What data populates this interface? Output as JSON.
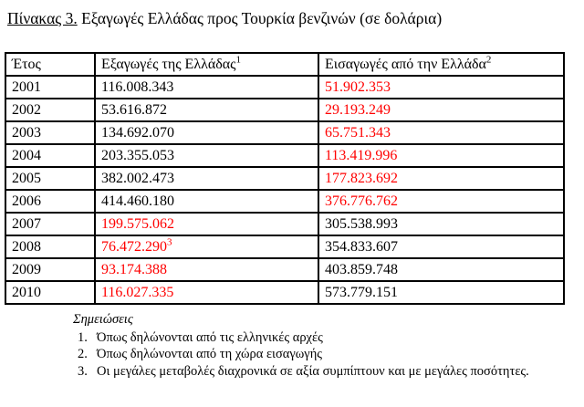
{
  "title": {
    "underlined": "Πίνακας 3.",
    "rest": " Εξαγωγές Ελλάδας προς Τουρκία βενζινών (σε δολάρια)"
  },
  "table": {
    "headers": [
      {
        "text": "Έτος",
        "sup": ""
      },
      {
        "text": "Εξαγωγές της Ελλάδας",
        "sup": "1"
      },
      {
        "text": "Εισαγωγές από την Ελλάδα",
        "sup": "2"
      }
    ],
    "rows": [
      {
        "year": "2001",
        "exports": {
          "value": "116.008.343",
          "sup": "",
          "color": "black",
          "bold": false
        },
        "imports": {
          "value": "51.902.353",
          "sup": "",
          "color": "red",
          "bold": false
        }
      },
      {
        "year": "2002",
        "exports": {
          "value": "53.616.872",
          "sup": "",
          "color": "black",
          "bold": false
        },
        "imports": {
          "value": "29.193.249",
          "sup": "",
          "color": "red",
          "bold": false
        }
      },
      {
        "year": "2003",
        "exports": {
          "value": "134.692.070",
          "sup": "",
          "color": "black",
          "bold": false
        },
        "imports": {
          "value": "65.751.343",
          "sup": "",
          "color": "red",
          "bold": false
        }
      },
      {
        "year": "2004",
        "exports": {
          "value": "203.355.053",
          "sup": "",
          "color": "black",
          "bold": false
        },
        "imports": {
          "value": "113.419.996",
          "sup": "",
          "color": "red",
          "bold": false
        }
      },
      {
        "year": "2005",
        "exports": {
          "value": "382.002.473",
          "sup": "",
          "color": "black",
          "bold": false
        },
        "imports": {
          "value": "177.823.692",
          "sup": "",
          "color": "red",
          "bold": false
        }
      },
      {
        "year": "2006",
        "exports": {
          "value": "414.460.180",
          "sup": "",
          "color": "black",
          "bold": false
        },
        "imports": {
          "value": "376.776.762",
          "sup": "",
          "color": "red",
          "bold": false
        }
      },
      {
        "year": "2007",
        "exports": {
          "value": "199.575.062",
          "sup": "",
          "color": "red",
          "bold": false
        },
        "imports": {
          "value": "305.538.993",
          "sup": "",
          "color": "black",
          "bold": true
        }
      },
      {
        "year": "2008",
        "exports": {
          "value": "76.472.290",
          "sup": "3",
          "color": "red",
          "bold": false
        },
        "imports": {
          "value": "354.833.607",
          "sup": "",
          "color": "black",
          "bold": true
        }
      },
      {
        "year": "2009",
        "exports": {
          "value": "93.174.388",
          "sup": "",
          "color": "red",
          "bold": false
        },
        "imports": {
          "value": "403.859.748",
          "sup": "",
          "color": "black",
          "bold": true
        }
      },
      {
        "year": "2010",
        "exports": {
          "value": "116.027.335",
          "sup": "",
          "color": "red",
          "bold": false
        },
        "imports": {
          "value": "573.779.151",
          "sup": "",
          "color": "black",
          "bold": true
        }
      }
    ]
  },
  "notes": {
    "heading": "Σημειώσεις",
    "items": [
      {
        "num": "1.",
        "text": "Όπως δηλώνονται από τις ελληνικές αρχές"
      },
      {
        "num": "2.",
        "text": "Όπως δηλώνονται από τη χώρα εισαγωγής"
      },
      {
        "num": "3.",
        "text": "Οι μεγάλες μεταβολές διαχρονικά σε αξία συμπίπτουν και με μεγάλες ποσότητες."
      }
    ]
  },
  "colors": {
    "red": "#FF0000",
    "black": "#000000"
  }
}
